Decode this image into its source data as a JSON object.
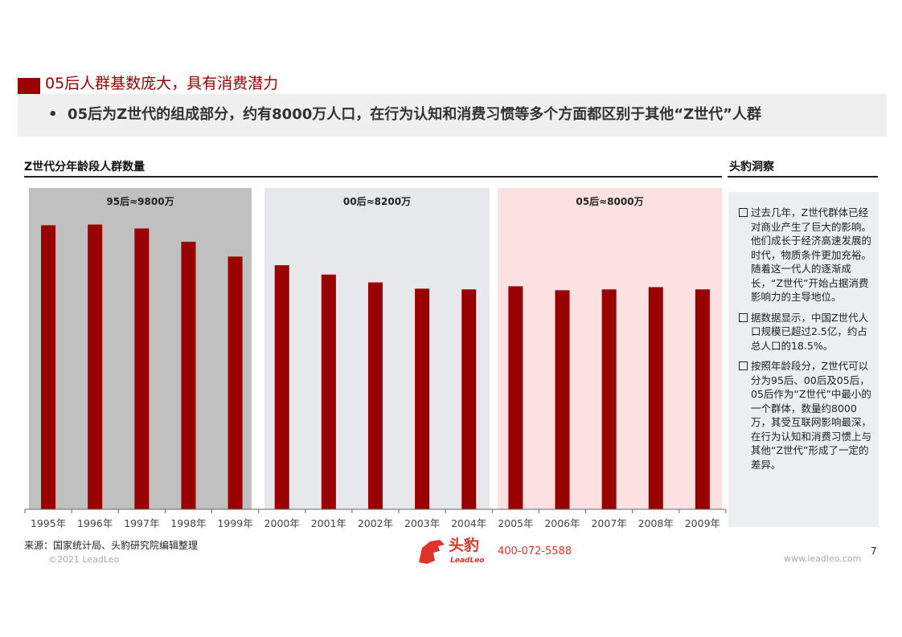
{
  "title": "05后人群基数庞大，具有消费潜力",
  "subtitle": "05后为Z世代的组成部分，约有8000万人口，在行为认知和消费习惯等多个方面都区别于其他“Z世代”人群",
  "chart_section_title": "Z世代分年龄段人群数量",
  "side_section_title": "头豹洞察",
  "chart_data": {
    "type": "bar",
    "title": "Z世代分年龄段人群数量",
    "categories": [
      "1995年",
      "1996年",
      "1997年",
      "1998年",
      "1999年",
      "2000年",
      "2001年",
      "2002年",
      "2003年",
      "2004年",
      "2005年",
      "2006年",
      "2007年",
      "2008年",
      "2009年"
    ],
    "values": [
      2033,
      2038,
      2010,
      1915,
      1809,
      1747,
      1680,
      1624,
      1579,
      1574,
      1596,
      1568,
      1574,
      1590,
      1574
    ],
    "unit": "万",
    "ylim": [
      0,
      2300
    ],
    "groups": [
      {
        "label": "95后≈9800万",
        "from": 0,
        "to": 4,
        "color": "#c0c0c0"
      },
      {
        "label": "00后≈8200万",
        "from": 5,
        "to": 9,
        "color": "#e6e8ec"
      },
      {
        "label": "05后≈8000万",
        "from": 10,
        "to": 14,
        "color": "#fbe1e1"
      }
    ],
    "bar_color": "#990000"
  },
  "insights": [
    "过去几年，Z世代群体已经对商业产生了巨大的影响。他们成长于经济高速发展的时代，物质条件更加充裕。随着这一代人的逐渐成长，“Z世代”开始占据消费影响力的主导地位。",
    "据数据显示，中国Z世代人口规模已超过2.5亿，约占总人口的18.5%。",
    "按照年龄段分，Z世代可以分为95后、00后及05后，05后作为“Z世代”中最小的一个群体，数量约8000万，其受互联网影响最深，在行为认知和消费习惯上与其他“Z世代”形成了一定的差异。"
  ],
  "footer": {
    "source": "来源：国家统计局、头豹研究院编辑整理",
    "copyright": "©2021 LeadLeo",
    "logo_cn": "头豹",
    "logo_en": "LeadLeo",
    "phone": "400-072-5588",
    "website": "www.leadleo.com",
    "page": "7"
  }
}
